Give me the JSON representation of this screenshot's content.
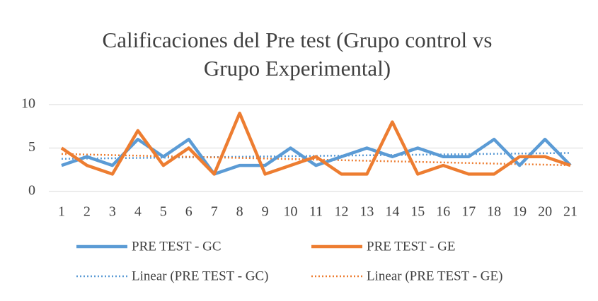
{
  "chart_data": {
    "type": "line",
    "title": "Calificaciones del Pre test (Grupo control vs Grupo Experimental)",
    "categories": [
      "1",
      "2",
      "3",
      "4",
      "5",
      "6",
      "7",
      "8",
      "9",
      "10",
      "11",
      "12",
      "13",
      "14",
      "15",
      "16",
      "17",
      "18",
      "19",
      "20",
      "21"
    ],
    "series": [
      {
        "name": "PRE TEST - GC",
        "color": "#5b9bd5",
        "trendline_name": "Linear (PRE TEST - GC)",
        "values": [
          3,
          4,
          3,
          6,
          4,
          6,
          2,
          3,
          3,
          5,
          3,
          4,
          5,
          4,
          5,
          4,
          4,
          6,
          3,
          6,
          3
        ]
      },
      {
        "name": "PRE TEST - GE",
        "color": "#ed7d31",
        "trendline_name": "Linear (PRE TEST - GE)",
        "values": [
          5,
          3,
          2,
          7,
          3,
          5,
          2,
          9,
          2,
          3,
          4,
          2,
          2,
          8,
          2,
          3,
          2,
          2,
          4,
          4,
          3
        ]
      }
    ],
    "ylim": [
      0,
      10
    ],
    "yticks": [
      0,
      5,
      10
    ],
    "grid": true,
    "legend": "bottom"
  }
}
